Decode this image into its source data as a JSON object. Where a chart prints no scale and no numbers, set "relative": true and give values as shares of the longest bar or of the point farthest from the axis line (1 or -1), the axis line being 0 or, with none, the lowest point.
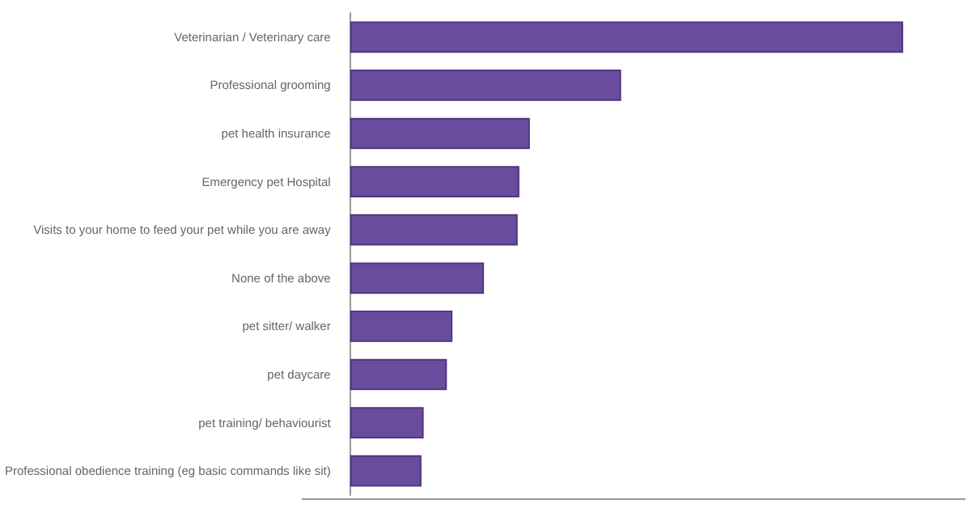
{
  "chart_data": {
    "type": "bar",
    "orientation": "horizontal",
    "relative": true,
    "categories": [
      "Veterinarian / Veterinary care",
      "Professional grooming",
      "pet health insurance",
      "Emergency pet Hospital",
      "Visits to your home to feed your pet while you are away",
      "None of the above",
      "pet sitter/ walker",
      "pet daycare",
      "pet training/ behaviourist",
      "Professional obedience training (eg basic commands like sit)"
    ],
    "values": [
      1,
      0.49,
      0.325,
      0.306,
      0.303,
      0.242,
      0.185,
      0.175,
      0.133,
      0.129
    ],
    "color": "#6a4c9c"
  }
}
